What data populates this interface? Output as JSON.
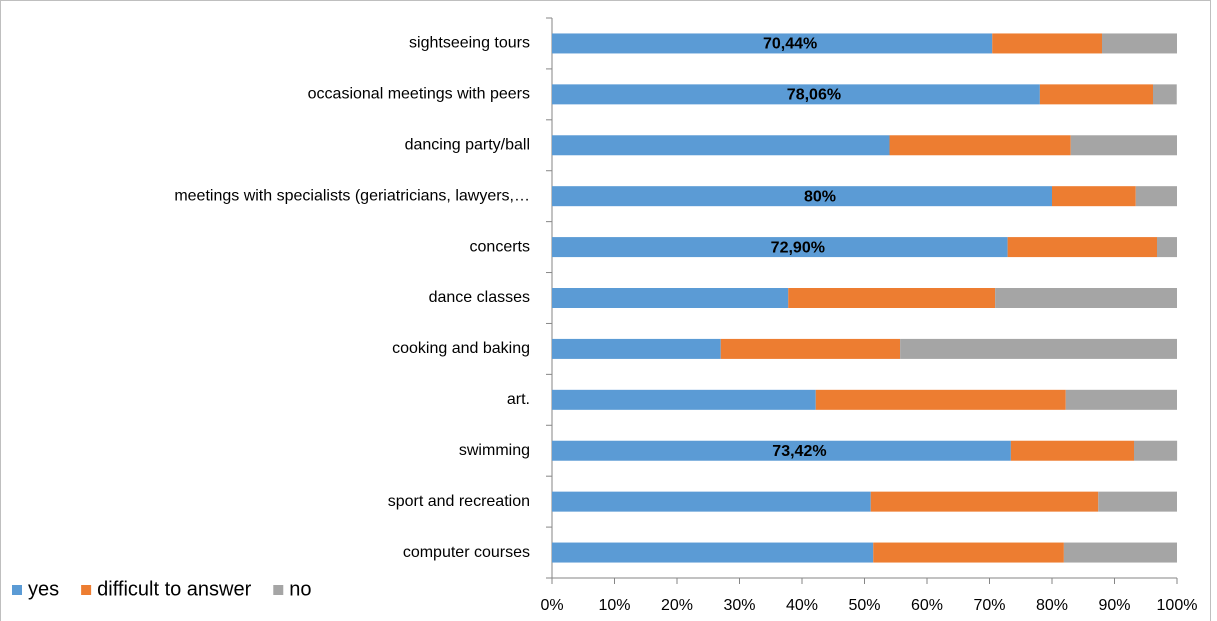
{
  "chart_data": {
    "type": "stacked-bar-horizontal",
    "categories": [
      "sightseeing tours",
      "occasional meetings with peers",
      "dancing party/ball",
      "meetings with specialists (geriatricians, lawyers,…",
      "concerts",
      "dance classes",
      "cooking and baking",
      "art.",
      "swimming",
      "sport and recreation",
      "computer courses"
    ],
    "series": [
      {
        "name": "yes",
        "color": "#5b9bd5",
        "values": [
          70.44,
          78.06,
          54,
          80,
          72.9,
          37.8,
          27,
          42.2,
          73.42,
          51,
          51.4
        ],
        "value_labels": [
          "70,44%",
          "78,06%",
          null,
          "80%",
          "72,90%",
          null,
          null,
          null,
          "73,42%",
          null,
          null
        ]
      },
      {
        "name": "difficult to answer",
        "color": "#ed7d31",
        "values": [
          17.56,
          18.1,
          29,
          13.4,
          23.9,
          33.1,
          28.7,
          40,
          19.7,
          36.4,
          30.5
        ]
      },
      {
        "name": "no",
        "color": "#a5a5a5",
        "values": [
          12,
          3.8,
          17,
          6.6,
          3.2,
          29.1,
          44.3,
          17.8,
          6.9,
          12.6,
          18.1
        ]
      }
    ],
    "xlim": [
      0,
      100
    ],
    "xticks": [
      {
        "value": 0,
        "label": "0%"
      },
      {
        "value": 10,
        "label": "10%"
      },
      {
        "value": 20,
        "label": "20%"
      },
      {
        "value": 30,
        "label": "30%"
      },
      {
        "value": 40,
        "label": "40%"
      },
      {
        "value": 50,
        "label": "50%"
      },
      {
        "value": 60,
        "label": "60%"
      },
      {
        "value": 70,
        "label": "70%"
      },
      {
        "value": 80,
        "label": "80%"
      },
      {
        "value": 90,
        "label": "90%"
      },
      {
        "value": 100,
        "label": "100%"
      }
    ],
    "legend": "bottom-left",
    "grid": false
  }
}
